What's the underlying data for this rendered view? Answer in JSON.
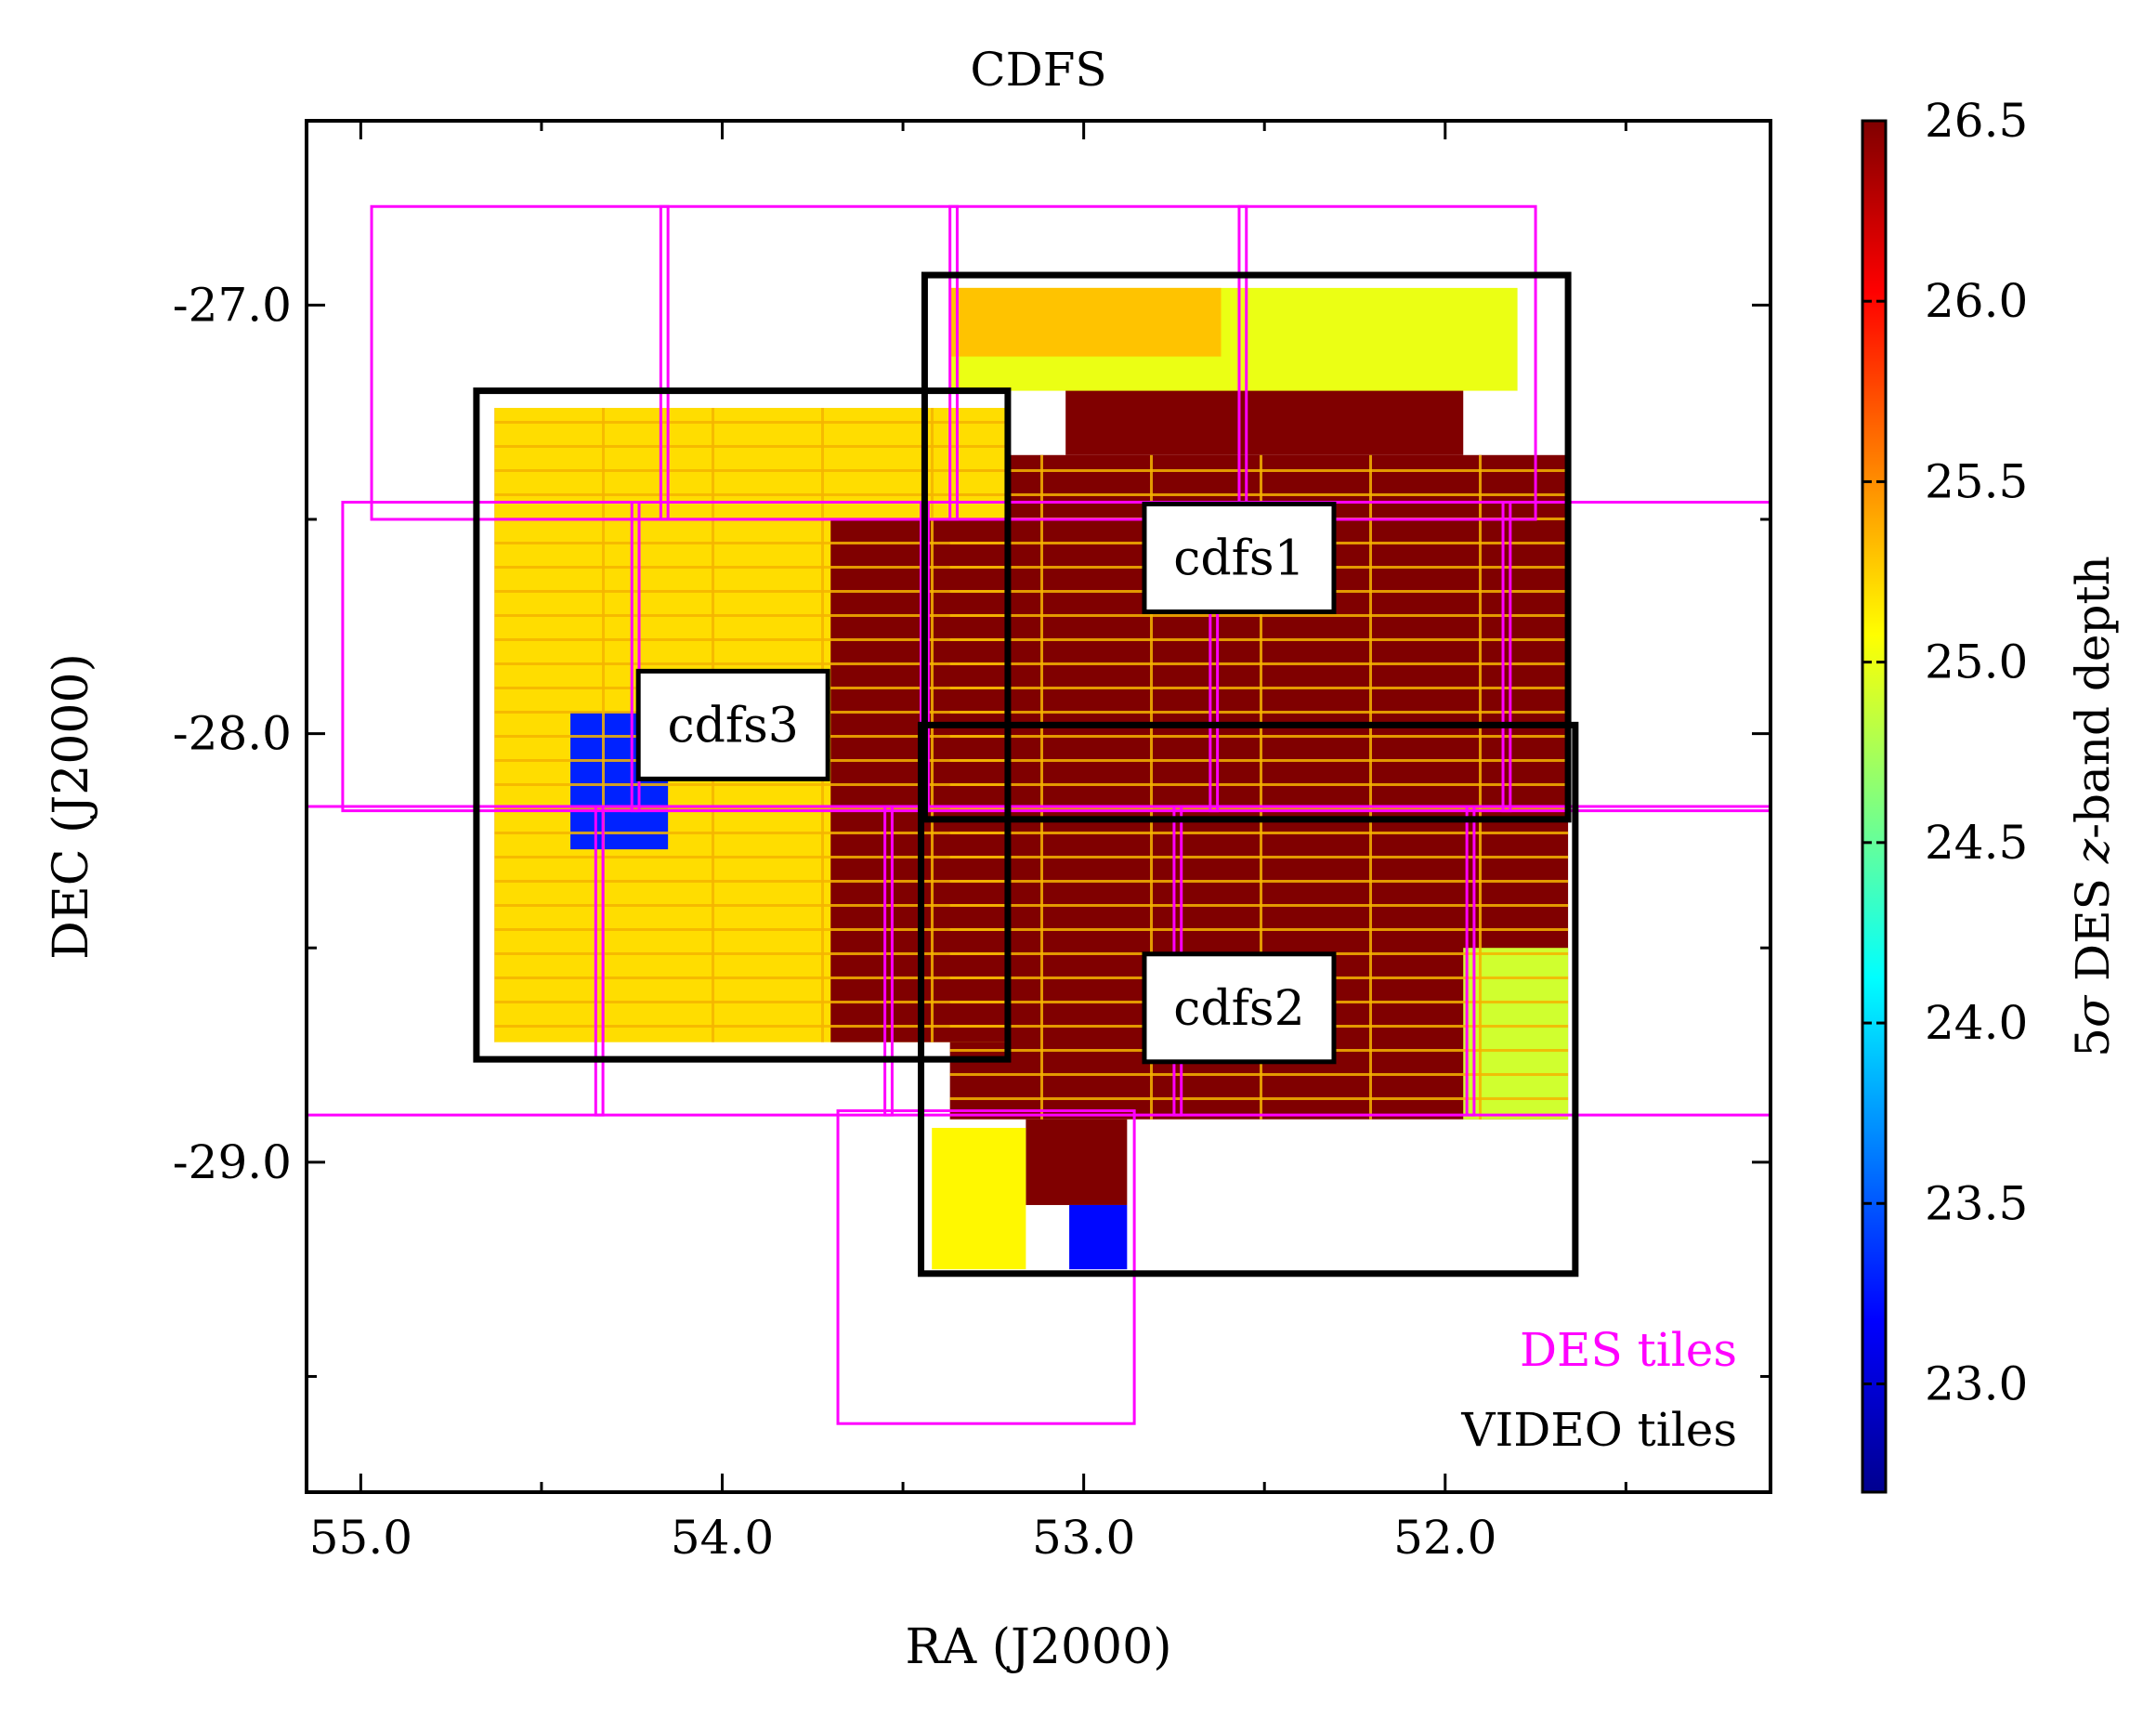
{
  "chart_data": {
    "type": "heatmap",
    "title": "CDFS",
    "xlabel": "RA (J2000)",
    "ylabel": "DEC (J2000)",
    "xlim": [
      55.15,
      51.1
    ],
    "ylim": [
      -29.77,
      -26.57
    ],
    "x_ticks": [
      52.0,
      53.0,
      54.0,
      55.0
    ],
    "x_tick_labels": [
      "52.0",
      "53.0",
      "54.0",
      "55.0"
    ],
    "y_ticks": [
      -27.0,
      -28.0,
      -29.0
    ],
    "y_tick_labels": [
      "-27.0",
      "-28.0",
      "-29.0"
    ],
    "colorbar": {
      "label": "5σ DES z-band depth",
      "label_parts": [
        "5",
        "σ",
        " DES ",
        "z",
        "-band depth"
      ],
      "colormap": "jet",
      "vmin": 22.7,
      "vmax": 26.5,
      "ticks": [
        23.0,
        23.5,
        24.0,
        24.5,
        25.0,
        25.5,
        26.0,
        26.5
      ],
      "tick_labels": [
        "23.0",
        "23.5",
        "24.0",
        "24.5",
        "25.0",
        "25.5",
        "26.0",
        "26.5"
      ]
    },
    "depth_regions": [
      {
        "name": "cdfs1-deep",
        "ra": [
          51.66,
          53.37
        ],
        "dec": [
          -27.35,
          -28.2
        ],
        "depth": 26.5
      },
      {
        "name": "cdfs1-top-deep",
        "ra": [
          51.95,
          53.05
        ],
        "dec": [
          -27.12,
          -27.35
        ],
        "depth": 26.5
      },
      {
        "name": "cdfs1-top-shallow",
        "ra": [
          51.8,
          53.37
        ],
        "dec": [
          -26.96,
          -27.2
        ],
        "depth": 25.0
      },
      {
        "name": "cdfs1-top-right",
        "ra": [
          52.62,
          53.37
        ],
        "dec": [
          -26.96,
          -27.12
        ],
        "depth": 25.3
      },
      {
        "name": "cdfs2-deep",
        "ra": [
          51.66,
          53.37
        ],
        "dec": [
          -28.2,
          -28.9
        ],
        "depth": 26.5
      },
      {
        "name": "cdfs2-bottom-left",
        "ra": [
          51.66,
          51.95
        ],
        "dec": [
          -28.5,
          -28.9
        ],
        "depth": 24.9
      },
      {
        "name": "south-strip-deep",
        "ra": [
          52.88,
          53.16
        ],
        "dec": [
          -28.9,
          -29.1
        ],
        "depth": 26.5
      },
      {
        "name": "south-strip-shallow",
        "ra": [
          53.16,
          53.42
        ],
        "dec": [
          -28.92,
          -29.25
        ],
        "depth": 25.1
      },
      {
        "name": "south-strip-blue",
        "ra": [
          52.88,
          53.04
        ],
        "dec": [
          -29.1,
          -29.25
        ],
        "depth": 23.2
      },
      {
        "name": "cdfs3-shallow",
        "ra": [
          53.21,
          54.63
        ],
        "dec": [
          -27.24,
          -28.72
        ],
        "depth": 25.2
      },
      {
        "name": "cdfs3-deep-overlap",
        "ra": [
          53.2,
          53.7
        ],
        "dec": [
          -27.5,
          -28.72
        ],
        "depth": 26.5
      },
      {
        "name": "cdfs3-blue",
        "ra": [
          54.15,
          54.42
        ],
        "dec": [
          -27.95,
          -28.27
        ],
        "depth": 23.3
      }
    ],
    "annotations": [
      "cdfs1",
      "cdfs2",
      "cdfs3"
    ],
    "legend": [
      {
        "label": "DES tiles",
        "color": "#ff00ff"
      },
      {
        "label": "VIDEO tiles",
        "color": "#000000"
      }
    ],
    "legend_position": "lower-right"
  },
  "figure": {
    "video_tiles": [
      {
        "label": "cdfs1",
        "ra": [
          51.66,
          53.44
        ],
        "dec": [
          -26.93,
          -28.2
        ],
        "label_ra": 52.57,
        "label_dec": -27.59
      },
      {
        "label": "cdfs2",
        "ra": [
          51.64,
          53.45
        ],
        "dec": [
          -27.98,
          -29.26
        ],
        "label_ra": 52.57,
        "label_dec": -28.64
      },
      {
        "label": "cdfs3",
        "ra": [
          53.21,
          54.68
        ],
        "dec": [
          -27.2,
          -28.76
        ],
        "label_ra": 53.97,
        "label_dec": -27.98
      }
    ],
    "des_tiles": [
      {
        "ra": [
          51.75,
          52.57
        ],
        "dec": [
          -26.77,
          -27.5
        ]
      },
      {
        "ra": [
          52.55,
          53.37
        ],
        "dec": [
          -26.77,
          -27.5
        ]
      },
      {
        "ra": [
          53.35,
          54.17
        ],
        "dec": [
          -26.77,
          -27.5
        ]
      },
      {
        "ra": [
          54.15,
          54.97
        ],
        "dec": [
          -26.77,
          -27.5
        ]
      },
      {
        "ra": [
          51.1,
          51.84
        ],
        "dec": [
          -27.46,
          -28.18
        ]
      },
      {
        "ra": [
          51.82,
          52.65
        ],
        "dec": [
          -27.46,
          -28.18
        ]
      },
      {
        "ra": [
          52.63,
          53.45
        ],
        "dec": [
          -27.46,
          -28.18
        ]
      },
      {
        "ra": [
          53.43,
          54.25
        ],
        "dec": [
          -27.46,
          -28.18
        ]
      },
      {
        "ra": [
          54.23,
          55.05
        ],
        "dec": [
          -27.46,
          -28.18
        ]
      },
      {
        "ra": [
          51.1,
          51.94
        ],
        "dec": [
          -28.17,
          -28.89
        ]
      },
      {
        "ra": [
          51.92,
          52.75
        ],
        "dec": [
          -28.17,
          -28.89
        ]
      },
      {
        "ra": [
          52.73,
          53.55
        ],
        "dec": [
          -28.17,
          -28.89
        ]
      },
      {
        "ra": [
          53.53,
          54.35
        ],
        "dec": [
          -28.17,
          -28.89
        ]
      },
      {
        "ra": [
          54.33,
          55.15
        ],
        "dec": [
          -28.17,
          -28.89
        ]
      },
      {
        "ra": [
          52.86,
          53.68
        ],
        "dec": [
          -28.88,
          -29.61
        ]
      }
    ]
  }
}
